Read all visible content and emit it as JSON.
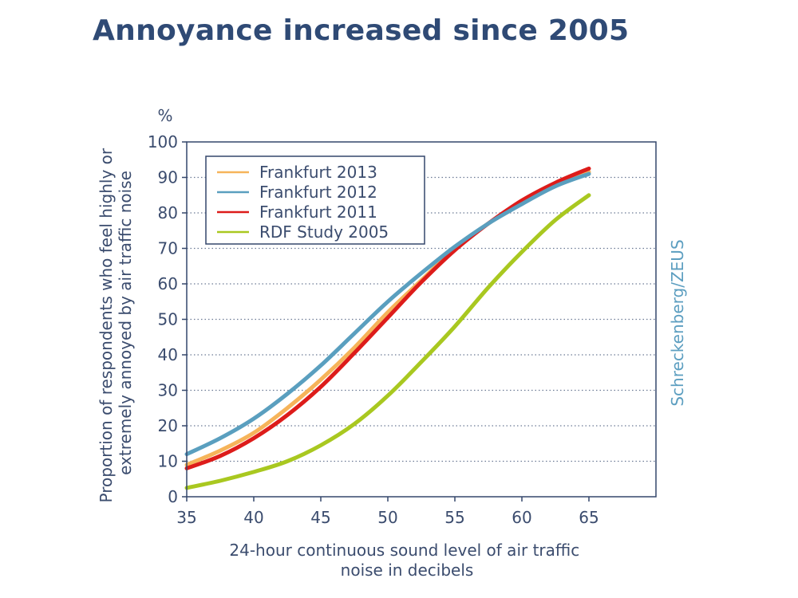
{
  "title": "Annoyance increased since 2005",
  "credit": "Schreckenberg/ZEUS",
  "colors": {
    "axis": "#34476b",
    "grid": "#6b7a94",
    "text": "#3b4c6e",
    "title": "#2f4a75",
    "credit": "#5c9ec0"
  },
  "chart_data": {
    "type": "line",
    "title": "Annoyance increased since 2005",
    "unit_label": "%",
    "xlabel": "24-hour continuous sound level of air traffic noise in decibels",
    "xlabel_lines": [
      "24-hour continuous sound level of air traffic",
      "noise in decibels"
    ],
    "ylabel": "Proportion of respondents who feel highly or extremely annoyed by air traffic noise",
    "ylabel_lines": [
      "Proportion of respondents who feel highly or",
      "extremely annoyed by air traffic noise"
    ],
    "xlim": [
      35,
      70
    ],
    "ylim": [
      0,
      100
    ],
    "x_ticks": [
      35,
      40,
      45,
      50,
      55,
      60,
      65
    ],
    "y_ticks": [
      0,
      10,
      20,
      30,
      40,
      50,
      60,
      70,
      80,
      90,
      100
    ],
    "grid": "horizontal dotted",
    "legend_position": "top-left",
    "series": [
      {
        "name": "Frankfurt 2013",
        "color": "#f6b45a",
        "x": [
          35,
          37.5,
          40,
          42.5,
          45,
          47.5,
          50,
          52.5,
          55,
          57.5,
          60,
          62.5,
          65
        ],
        "y": [
          9,
          13,
          18,
          25,
          33,
          42,
          52,
          61,
          70,
          77,
          83,
          88,
          91.5
        ]
      },
      {
        "name": "Frankfurt 2012",
        "color": "#5a9fbf",
        "x": [
          35,
          37.5,
          40,
          42.5,
          45,
          47.5,
          50,
          52.5,
          55,
          57.5,
          60,
          62.5,
          65
        ],
        "y": [
          12,
          16.5,
          22,
          29,
          37,
          46,
          55,
          63,
          70.5,
          77,
          82.5,
          87.5,
          91
        ]
      },
      {
        "name": "Frankfurt 2011",
        "color": "#dd1c1a",
        "x": [
          35,
          37.5,
          40,
          42.5,
          45,
          47.5,
          50,
          52.5,
          55,
          57.5,
          60,
          62.5,
          65
        ],
        "y": [
          8,
          11.5,
          16.5,
          23,
          31,
          40.5,
          50.5,
          60.5,
          69.5,
          77,
          83.5,
          88.5,
          92.5
        ]
      },
      {
        "name": "RDF Study 2005",
        "color": "#a9c820",
        "x": [
          35,
          37.5,
          40,
          42.5,
          45,
          47.5,
          50,
          52.5,
          55,
          57.5,
          60,
          62.5,
          65
        ],
        "y": [
          2.5,
          4.5,
          7,
          10,
          14.5,
          20.5,
          28.5,
          38,
          48,
          59,
          69,
          78,
          85
        ]
      }
    ]
  }
}
